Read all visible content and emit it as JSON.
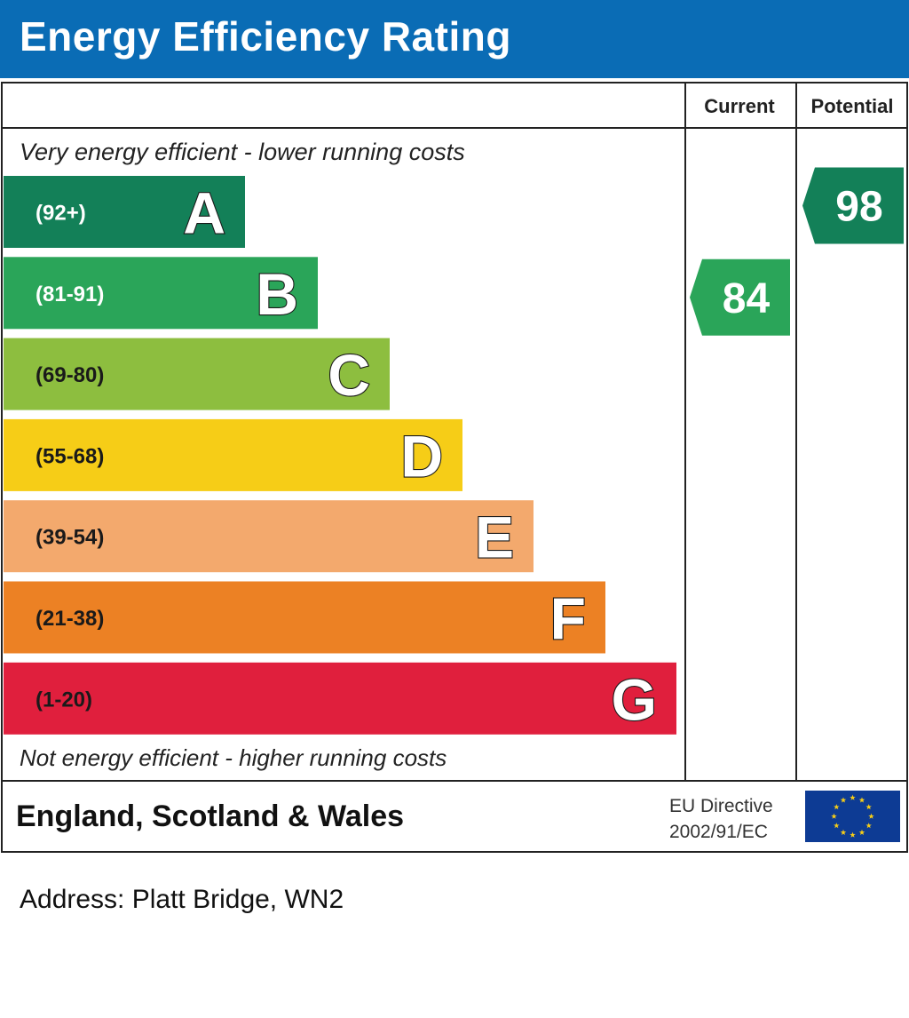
{
  "header": {
    "title": "Energy Efficiency Rating"
  },
  "columns": {
    "current": "Current",
    "potential": "Potential"
  },
  "captions": {
    "top": "Very energy efficient - lower running costs",
    "bottom": "Not energy efficient - higher running costs"
  },
  "footer": {
    "region": "England, Scotland & Wales",
    "directive_line1": "EU Directive",
    "directive_line2": "2002/91/EC"
  },
  "address": "Address: Platt Bridge, WN2",
  "chart_data": {
    "type": "bar",
    "bands": [
      {
        "letter": "A",
        "range": "(92+)",
        "min": 92,
        "max": 100,
        "color": "#138058"
      },
      {
        "letter": "B",
        "range": "(81-91)",
        "min": 81,
        "max": 91,
        "color": "#2aa559"
      },
      {
        "letter": "C",
        "range": "(69-80)",
        "min": 69,
        "max": 80,
        "color": "#8dbe3f"
      },
      {
        "letter": "D",
        "range": "(55-68)",
        "min": 55,
        "max": 68,
        "color": "#f6cd17"
      },
      {
        "letter": "E",
        "range": "(39-54)",
        "min": 39,
        "max": 54,
        "color": "#f3a96d"
      },
      {
        "letter": "F",
        "range": "(21-38)",
        "min": 21,
        "max": 38,
        "color": "#ec8124"
      },
      {
        "letter": "G",
        "range": "(1-20)",
        "min": 1,
        "max": 20,
        "color": "#e01f3d"
      }
    ],
    "current": {
      "value": 84,
      "band": "B",
      "color": "#2aa559"
    },
    "potential": {
      "value": 98,
      "band": "A",
      "color": "#138058"
    },
    "flag_color": "#0d3b94",
    "star_color": "#f6cd17"
  }
}
